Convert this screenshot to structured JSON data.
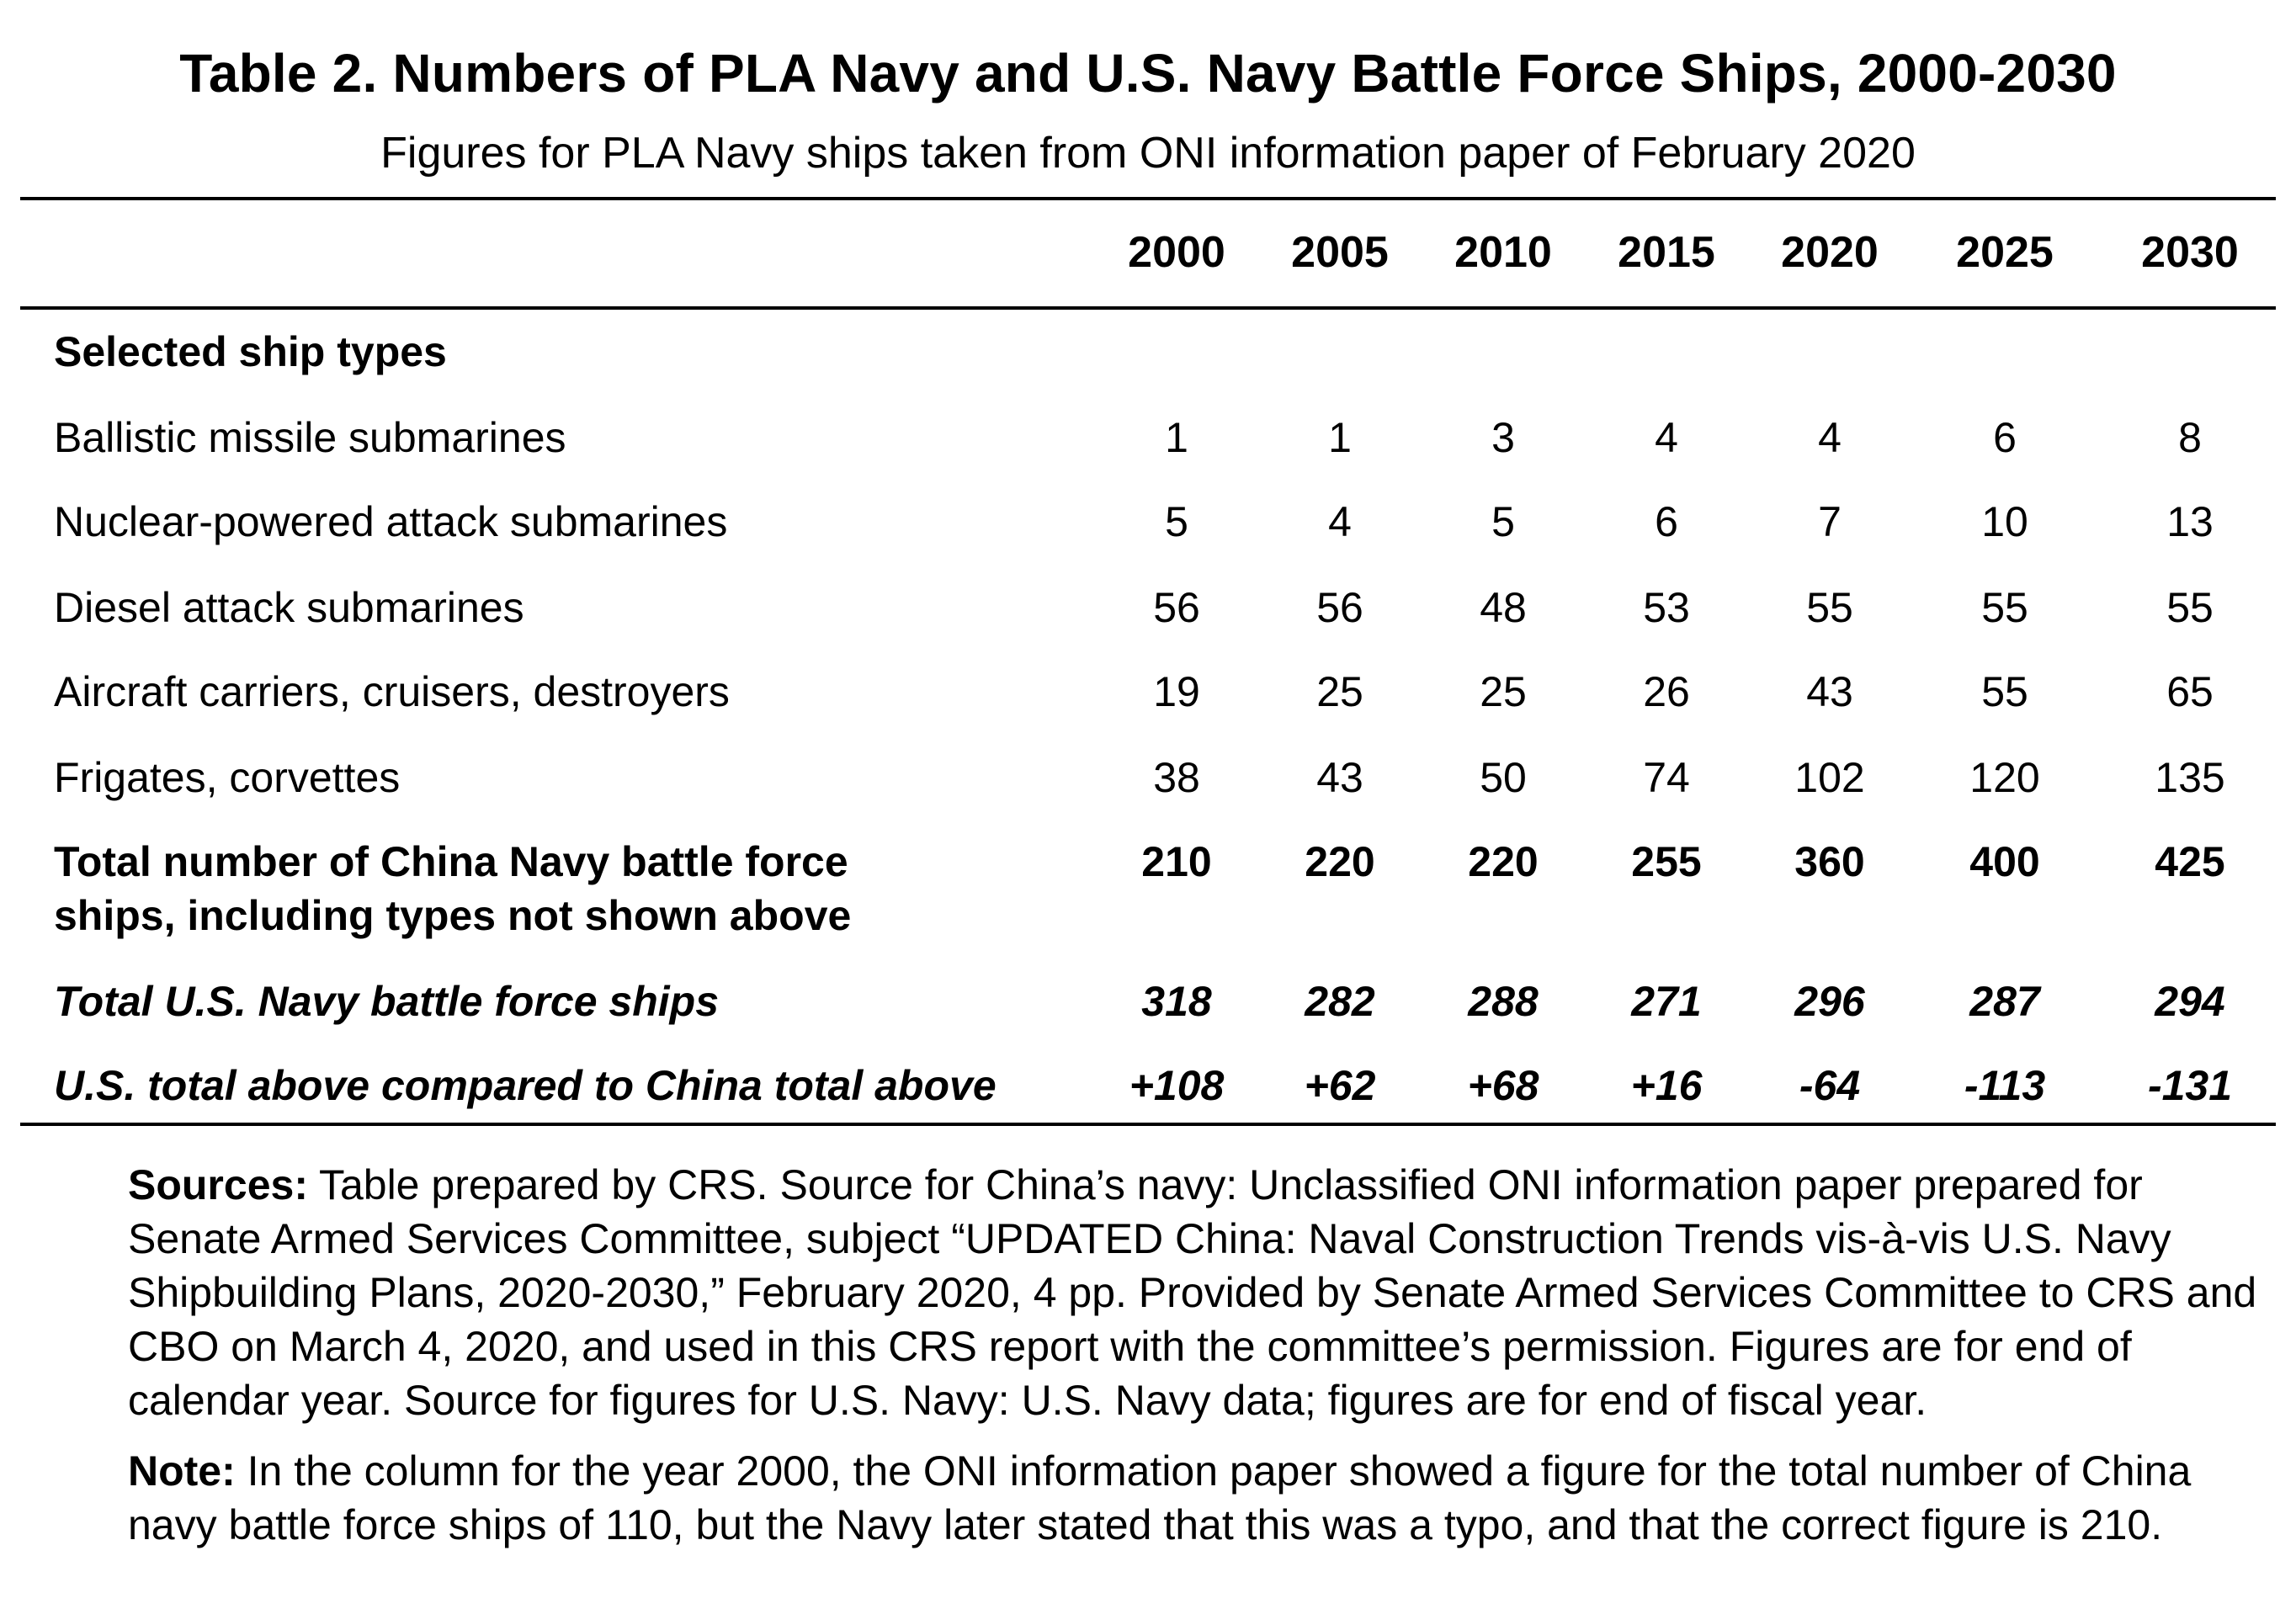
{
  "title": "Table 2. Numbers of PLA Navy and U.S. Navy Battle Force Ships, 2000-2030",
  "subtitle": "Figures for PLA Navy ships taken from ONI information paper of February 2020",
  "columns": [
    "2000",
    "2005",
    "2010",
    "2015",
    "2020",
    "2025",
    "2030"
  ],
  "section_label": "Selected ship types",
  "rows": [
    {
      "label": "Ballistic missile submarines",
      "values": [
        "1",
        "1",
        "3",
        "4",
        "4",
        "6",
        "8"
      ]
    },
    {
      "label": "Nuclear-powered attack submarines",
      "values": [
        "5",
        "4",
        "5",
        "6",
        "7",
        "10",
        "13"
      ]
    },
    {
      "label": "Diesel attack submarines",
      "values": [
        "56",
        "56",
        "48",
        "53",
        "55",
        "55",
        "55"
      ]
    },
    {
      "label": "Aircraft carriers, cruisers, destroyers",
      "values": [
        "19",
        "25",
        "25",
        "26",
        "43",
        "55",
        "65"
      ]
    },
    {
      "label": "Frigates, corvettes",
      "values": [
        "38",
        "43",
        "50",
        "74",
        "102",
        "120",
        "135"
      ]
    }
  ],
  "china_total": {
    "label_line1": "Total number of China Navy battle force",
    "label_line2": "ships, including types not shown above",
    "values": [
      "210",
      "220",
      "220",
      "255",
      "360",
      "400",
      "425"
    ]
  },
  "us_total": {
    "label": "Total U.S. Navy battle force ships",
    "values": [
      "318",
      "282",
      "288",
      "271",
      "296",
      "287",
      "294"
    ]
  },
  "comparison": {
    "label": "U.S. total above compared to China total above",
    "values": [
      "+108",
      "+62",
      "+68",
      "+16",
      "-64",
      "-113",
      "-131"
    ]
  },
  "sources": {
    "lead": "Sources:",
    "text": " Table prepared by CRS. Source for China’s navy: Unclassified ONI information paper prepared for Senate Armed Services Committee, subject “UPDATED China: Naval Construction Trends vis-à-vis U.S. Navy Shipbuilding Plans, 2020-2030,” February 2020, 4 pp. Provided by Senate Armed Services Committee to CRS and CBO on March 4, 2020, and used in this CRS report with the committee’s permission. Figures are for end of calendar year. Source for figures for U.S. Navy: U.S. Navy data; figures are for end of fiscal year."
  },
  "note": {
    "lead": "Note:",
    "text": " In the column for the year 2000, the ONI information paper showed a figure for the total number of China navy battle force ships of 110, but the Navy later stated that this was a typo, and that the correct figure is 210."
  }
}
